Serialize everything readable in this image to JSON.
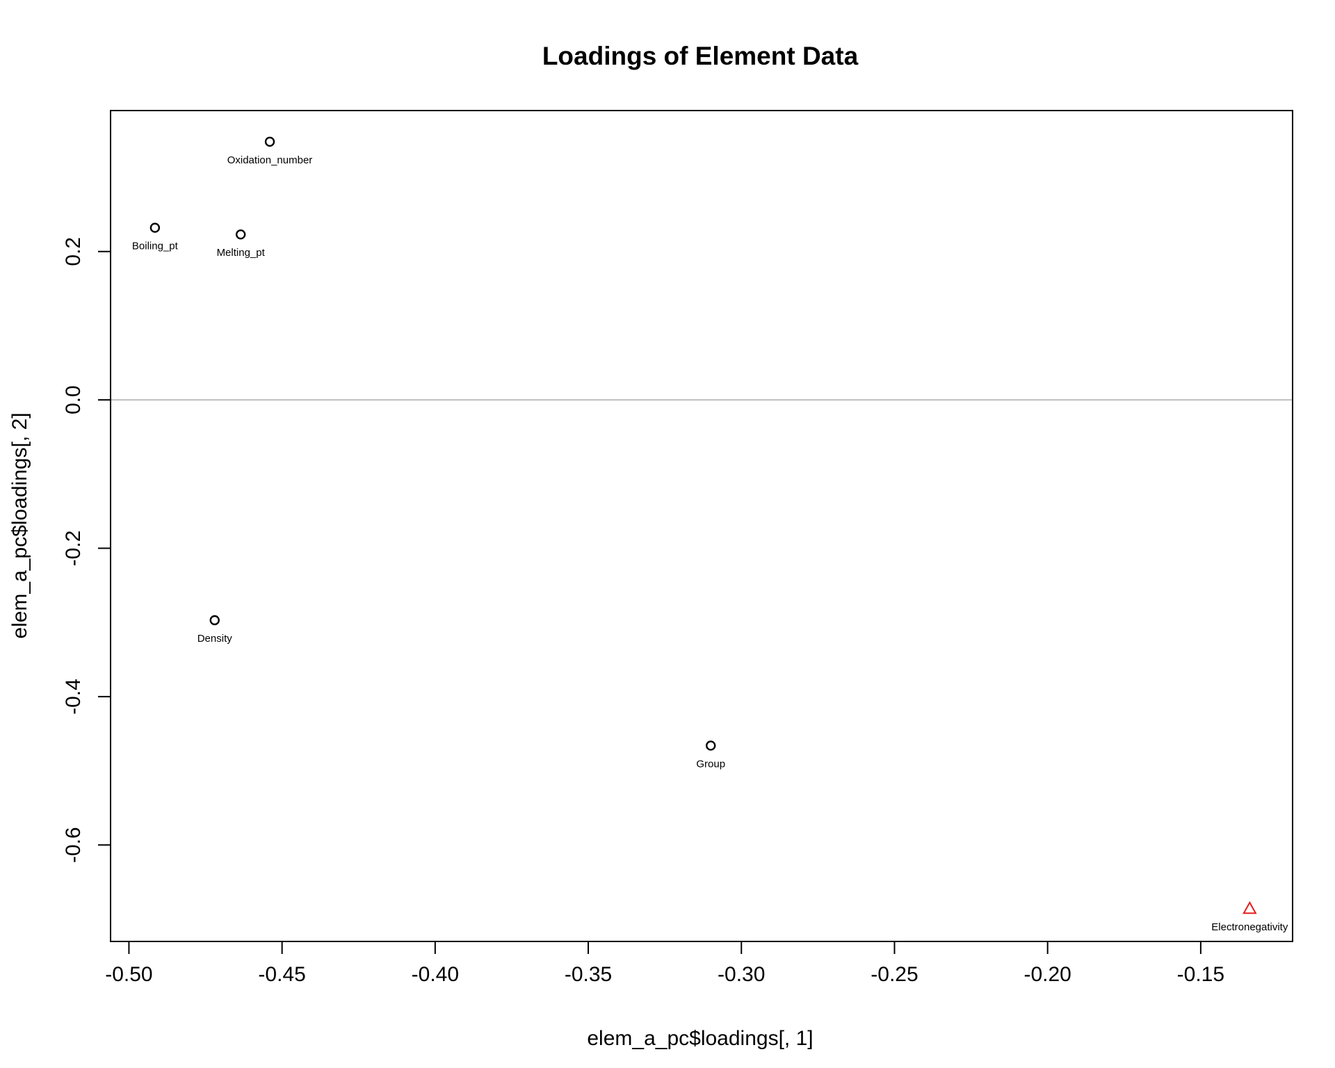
{
  "chart_data": {
    "type": "scatter",
    "title": "Loadings of Element Data",
    "xlabel": "elem_a_pc$loadings[, 1]",
    "ylabel": "elem_a_pc$loadings[, 2]",
    "xlim": [
      -0.506,
      -0.12
    ],
    "ylim": [
      -0.73,
      0.39
    ],
    "x_ticks": [
      -0.5,
      -0.45,
      -0.4,
      -0.35,
      -0.3,
      -0.25,
      -0.2,
      -0.15
    ],
    "x_tick_labels": [
      "-0.50",
      "-0.45",
      "-0.40",
      "-0.35",
      "-0.30",
      "-0.25",
      "-0.20",
      "-0.15"
    ],
    "y_ticks": [
      0.2,
      0.0,
      -0.2,
      -0.4,
      -0.6
    ],
    "y_tick_labels": [
      "0.2",
      "0.0",
      "-0.2",
      "-0.4",
      "-0.6"
    ],
    "reference_lines": [
      {
        "orientation": "horizontal",
        "y": 0.0,
        "color": "#bebebe"
      }
    ],
    "grid": false,
    "points": [
      {
        "label": "Boiling_pt",
        "x": -0.4915,
        "y": 0.232,
        "marker": "circle",
        "color": "#000000"
      },
      {
        "label": "Melting_pt",
        "x": -0.4635,
        "y": 0.223,
        "marker": "circle",
        "color": "#000000"
      },
      {
        "label": "Oxidation_number",
        "x": -0.454,
        "y": 0.348,
        "marker": "circle",
        "color": "#000000"
      },
      {
        "label": "Density",
        "x": -0.472,
        "y": -0.297,
        "marker": "circle",
        "color": "#000000"
      },
      {
        "label": "Group",
        "x": -0.31,
        "y": -0.466,
        "marker": "circle",
        "color": "#000000"
      },
      {
        "label": "Electronegativity",
        "x": -0.134,
        "y": -0.686,
        "marker": "triangle",
        "color": "#e41a1c"
      }
    ]
  }
}
